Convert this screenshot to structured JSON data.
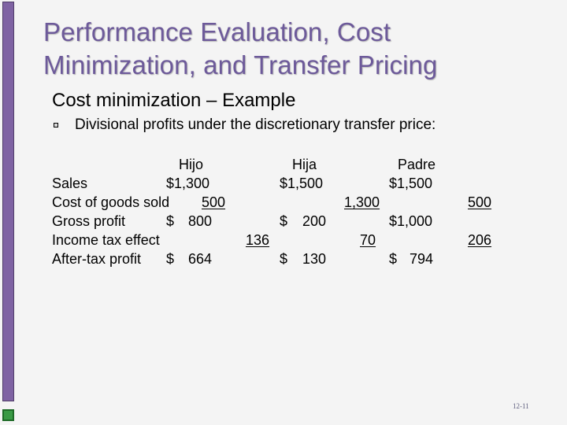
{
  "slide": {
    "title": "Performance Evaluation, Cost Minimization, and Transfer Pricing",
    "subtitle": "Cost minimization – Example",
    "bullet": "Divisional profits under the discretionary transfer price:",
    "bullet_icon": "square-bullet-icon",
    "slide_number": "12-11",
    "theme_colors": {
      "title": "#6d5a9a",
      "left_bar": "#7f63a3",
      "left_square": "#3a9a45",
      "background": "#f4f4f4"
    }
  },
  "table": {
    "headers": {
      "hijo": "Hijo",
      "hija": "Hija",
      "padre": "Padre"
    },
    "rows": {
      "sales": {
        "label": "Sales",
        "hijo": "$1,300",
        "hija": "$1,500",
        "padre": "$1,500"
      },
      "cogs": {
        "label": "Cost of goods sold",
        "hijo": "500",
        "hija": "1,300",
        "padre": "500"
      },
      "gross": {
        "label": "Gross profit",
        "hijo_dollar": "$",
        "hijo_value": "800",
        "hija_dollar": "$",
        "hija_value": "200",
        "padre": "$1,000"
      },
      "tax": {
        "label": "Income tax effect",
        "hijo": "136",
        "hija": "70",
        "padre": "206"
      },
      "after": {
        "label": "After-tax profit",
        "hijo_dollar": "$",
        "hijo_value": "664",
        "hija_dollar": "$",
        "hija_value": "130",
        "padre_dollar": "$",
        "padre_value": "794"
      }
    }
  }
}
